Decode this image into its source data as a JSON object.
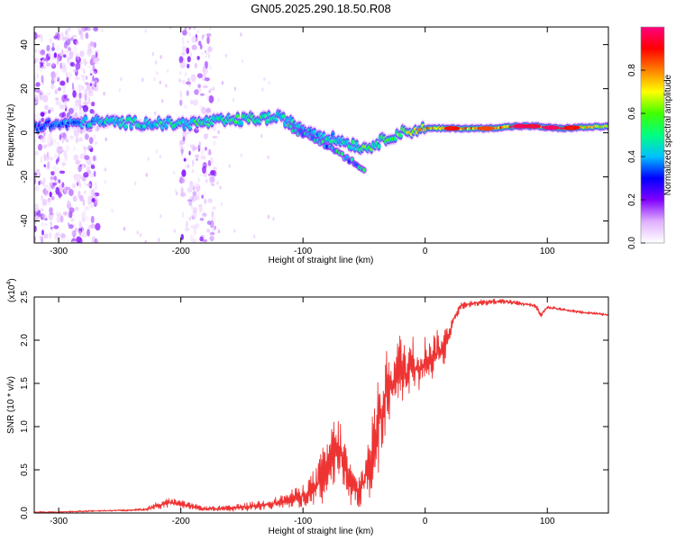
{
  "title": "GN05.2025.290.18.50.R08",
  "colorbar": {
    "label": "Normalized spectral amplitude",
    "ticks": [
      "0.0",
      "0.2",
      "0.4",
      "0.6",
      "0.8"
    ],
    "tick_values": [
      0.0,
      0.2,
      0.4,
      0.6,
      0.8
    ],
    "range": [
      0,
      1
    ],
    "colors": [
      "#ffffff",
      "#e0b0ff",
      "#8000ff",
      "#0000ff",
      "#00c0ff",
      "#00ff80",
      "#40ff00",
      "#ffff00",
      "#ff8000",
      "#ff0000",
      "#ff0080"
    ]
  },
  "chart_data": [
    {
      "type": "heatmap",
      "title": "GN05.2025.290.18.50.R08",
      "xlabel": "Height of straight line (km)",
      "ylabel": "Frequency (Hz)",
      "xlim": [
        -320,
        150
      ],
      "ylim": [
        -50,
        48
      ],
      "xticks": [
        -300,
        -200,
        -100,
        0,
        100
      ],
      "xtick_labels": [
        "-300",
        "-200",
        "-100",
        "0",
        "100"
      ],
      "yticks": [
        -40,
        -20,
        0,
        20,
        40
      ],
      "ytick_labels": [
        "-40",
        "-20",
        "0",
        "20",
        "40"
      ],
      "ridge": {
        "x": [
          -320,
          -270,
          -200,
          -150,
          -120,
          -100,
          -80,
          -60,
          -50,
          -40,
          -30,
          -20,
          -10,
          0,
          50,
          75,
          90,
          110,
          150
        ],
        "freq": [
          3,
          5,
          4,
          6,
          7,
          2,
          -2,
          -5,
          -7,
          -5,
          -2,
          0,
          1,
          2,
          2,
          3,
          3,
          2,
          3
        ],
        "amplitude": [
          0.3,
          0.45,
          0.5,
          0.55,
          0.5,
          0.45,
          0.45,
          0.5,
          0.6,
          0.55,
          0.6,
          0.65,
          0.7,
          0.8,
          0.85,
          0.95,
          0.9,
          0.95,
          0.7
        ]
      },
      "branch": {
        "x": [
          -110,
          -95,
          -80,
          -70,
          -60,
          -50
        ],
        "freq": [
          2,
          -2,
          -6,
          -10,
          -13,
          -17
        ]
      },
      "noise_regions": [
        [
          -320,
          -268
        ],
        [
          -200,
          -172
        ]
      ]
    },
    {
      "type": "line",
      "xlabel": "Height of straight line (km)",
      "ylabel": "SNR (10 * v/v)",
      "y_multiplier": "(x10",
      "y_multiplier_exp": "4",
      "xlim": [
        -320,
        150
      ],
      "ylim": [
        0,
        2.5
      ],
      "xticks": [
        -300,
        -200,
        -100,
        0,
        100
      ],
      "xtick_labels": [
        "-300",
        "-200",
        "-100",
        "0",
        "100"
      ],
      "yticks": [
        0,
        0.5,
        1.0,
        1.5,
        2.0,
        2.5
      ],
      "ytick_labels": [
        "0.0",
        "0.5",
        "1.0",
        "1.5",
        "2.0",
        "2.5"
      ],
      "color": "#ee3333",
      "series": [
        {
          "name": "SNR",
          "x": [
            -320,
            -300,
            -280,
            -250,
            -230,
            -220,
            -210,
            -200,
            -180,
            -160,
            -140,
            -120,
            -100,
            -90,
            -80,
            -75,
            -70,
            -65,
            -60,
            -55,
            -50,
            -45,
            -40,
            -35,
            -30,
            -25,
            -20,
            -15,
            -10,
            -5,
            0,
            5,
            10,
            15,
            20,
            25,
            30,
            40,
            50,
            60,
            70,
            80,
            90,
            95,
            100,
            110,
            120,
            130,
            140,
            150
          ],
          "y": [
            0.01,
            0.01,
            0.02,
            0.03,
            0.04,
            0.08,
            0.12,
            0.1,
            0.05,
            0.05,
            0.08,
            0.12,
            0.2,
            0.3,
            0.5,
            0.7,
            0.75,
            0.5,
            0.3,
            0.25,
            0.35,
            0.6,
            0.9,
            1.2,
            1.5,
            1.5,
            1.7,
            1.6,
            1.7,
            1.65,
            1.75,
            1.8,
            1.85,
            1.9,
            2.1,
            2.3,
            2.4,
            2.43,
            2.44,
            2.45,
            2.44,
            2.42,
            2.4,
            2.3,
            2.38,
            2.36,
            2.34,
            2.32,
            2.31,
            2.29
          ],
          "band": [
            0.01,
            0.01,
            0.01,
            0.01,
            0.02,
            0.05,
            0.06,
            0.05,
            0.03,
            0.04,
            0.06,
            0.08,
            0.15,
            0.25,
            0.45,
            0.45,
            0.4,
            0.35,
            0.25,
            0.2,
            0.3,
            0.5,
            0.6,
            0.6,
            0.5,
            0.5,
            0.45,
            0.45,
            0.4,
            0.35,
            0.35,
            0.3,
            0.3,
            0.25,
            0.15,
            0.08,
            0.05,
            0.04,
            0.04,
            0.03,
            0.03,
            0.03,
            0.03,
            0.04,
            0.03,
            0.02,
            0.02,
            0.02,
            0.02,
            0.02
          ]
        }
      ]
    }
  ]
}
